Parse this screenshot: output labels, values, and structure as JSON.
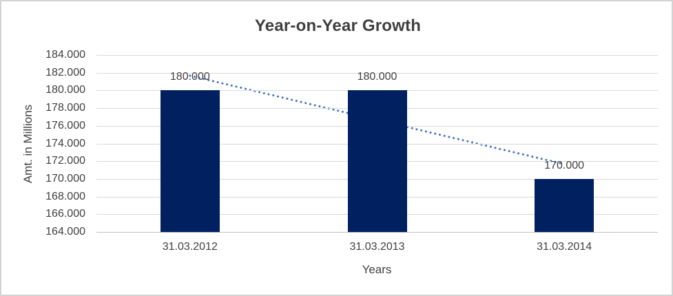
{
  "window": {
    "background_color": "#ffffff",
    "border_color": "#d3d3d3"
  },
  "chart_data": {
    "type": "bar",
    "title": "Year-on-Year Growth",
    "xlabel": "Years",
    "ylabel": "Amt. in Millions",
    "categories": [
      "31.03.2012",
      "31.03.2013",
      "31.03.2014"
    ],
    "values": [
      180000,
      180000,
      170000
    ],
    "value_labels": [
      "180.000",
      "180.000",
      "170.000"
    ],
    "y_axis": {
      "min": 164000,
      "max": 184000,
      "step": 2000,
      "tick_labels": [
        "184.000",
        "182.000",
        "180.000",
        "178.000",
        "176.000",
        "174.000",
        "172.000",
        "170.000",
        "168.000",
        "166.000",
        "164.000"
      ]
    },
    "legend": "none",
    "grid": "horizontal",
    "bar_color": "#002060",
    "gridline_color": "#d9d9d9",
    "axis_line_color": "#bfbfbf",
    "text_color": "#404040",
    "title_color": "#3f3f3f",
    "trendline": {
      "type": "linear",
      "style": "dotted",
      "color": "#4472c4",
      "values_at_categories": [
        181667,
        176667,
        171667
      ]
    }
  }
}
